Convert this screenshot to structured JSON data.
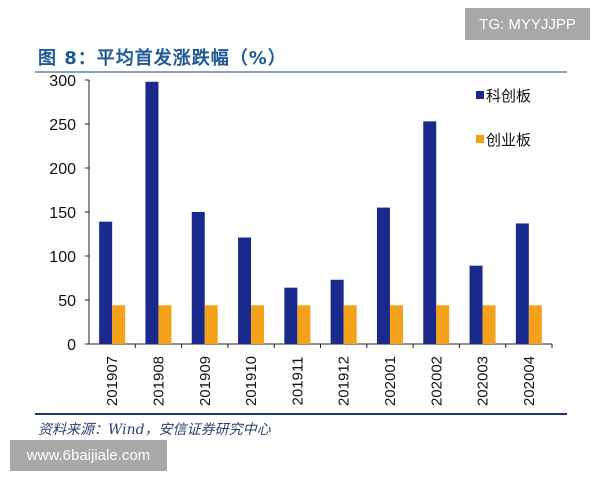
{
  "watermarks": {
    "top": "TG: MYYJJPP",
    "bottom": "www.6baijiale.com"
  },
  "source": "资料来源：Wind，安信证券研究中心",
  "chart_data": {
    "type": "bar",
    "title": "图 8：平均首发涨跌幅（%）",
    "xlabel": "",
    "ylabel": "",
    "ylim": [
      0,
      300
    ],
    "yticks": [
      0,
      50,
      100,
      150,
      200,
      250,
      300
    ],
    "categories": [
      "201907",
      "201908",
      "201909",
      "201910",
      "201911",
      "201912",
      "202001",
      "202002",
      "202003",
      "202004"
    ],
    "legend_position": "top-right",
    "series": [
      {
        "name": "科创板",
        "color": "#1a2a8c",
        "values": [
          139,
          298,
          150,
          121,
          64,
          73,
          155,
          253,
          89,
          137
        ]
      },
      {
        "name": "创业板",
        "color": "#f5a21b",
        "values": [
          44,
          44,
          44,
          44,
          44,
          44,
          44,
          44,
          44,
          44
        ]
      }
    ]
  }
}
